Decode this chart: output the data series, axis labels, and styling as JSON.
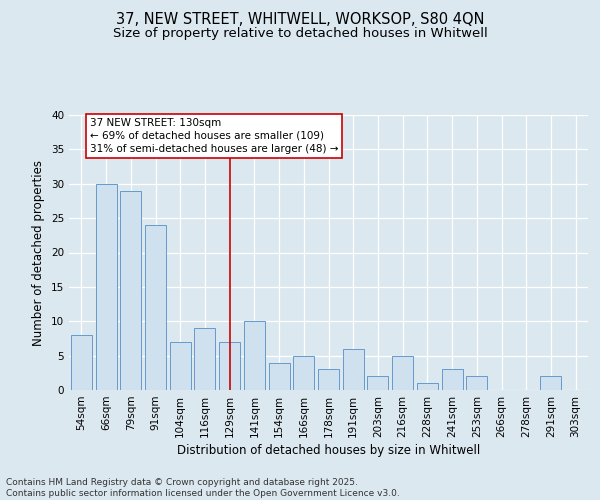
{
  "title_line1": "37, NEW STREET, WHITWELL, WORKSOP, S80 4QN",
  "title_line2": "Size of property relative to detached houses in Whitwell",
  "xlabel": "Distribution of detached houses by size in Whitwell",
  "ylabel": "Number of detached properties",
  "categories": [
    "54sqm",
    "66sqm",
    "79sqm",
    "91sqm",
    "104sqm",
    "116sqm",
    "129sqm",
    "141sqm",
    "154sqm",
    "166sqm",
    "178sqm",
    "191sqm",
    "203sqm",
    "216sqm",
    "228sqm",
    "241sqm",
    "253sqm",
    "266sqm",
    "278sqm",
    "291sqm",
    "303sqm"
  ],
  "values": [
    8,
    30,
    29,
    24,
    7,
    9,
    7,
    10,
    4,
    5,
    3,
    6,
    2,
    5,
    1,
    3,
    2,
    0,
    0,
    2,
    0
  ],
  "bar_color": "#cfe0ef",
  "bar_edge_color": "#6699cc",
  "annotation_line1": "37 NEW STREET: 130sqm",
  "annotation_line2": "← 69% of detached houses are smaller (109)",
  "annotation_line3": "31% of semi-detached houses are larger (48) →",
  "annotation_box_color": "#ffffff",
  "annotation_box_edge_color": "#cc0000",
  "vline_x_index": 6,
  "vline_color": "#cc0000",
  "ylim": [
    0,
    40
  ],
  "yticks": [
    0,
    5,
    10,
    15,
    20,
    25,
    30,
    35,
    40
  ],
  "bg_color": "#dce8f0",
  "plot_bg_color": "#dce8f0",
  "grid_color": "#ffffff",
  "footer_text": "Contains HM Land Registry data © Crown copyright and database right 2025.\nContains public sector information licensed under the Open Government Licence v3.0.",
  "title_fontsize": 10.5,
  "subtitle_fontsize": 9.5,
  "axis_label_fontsize": 8.5,
  "tick_fontsize": 7.5,
  "annotation_fontsize": 7.5,
  "footer_fontsize": 6.5
}
